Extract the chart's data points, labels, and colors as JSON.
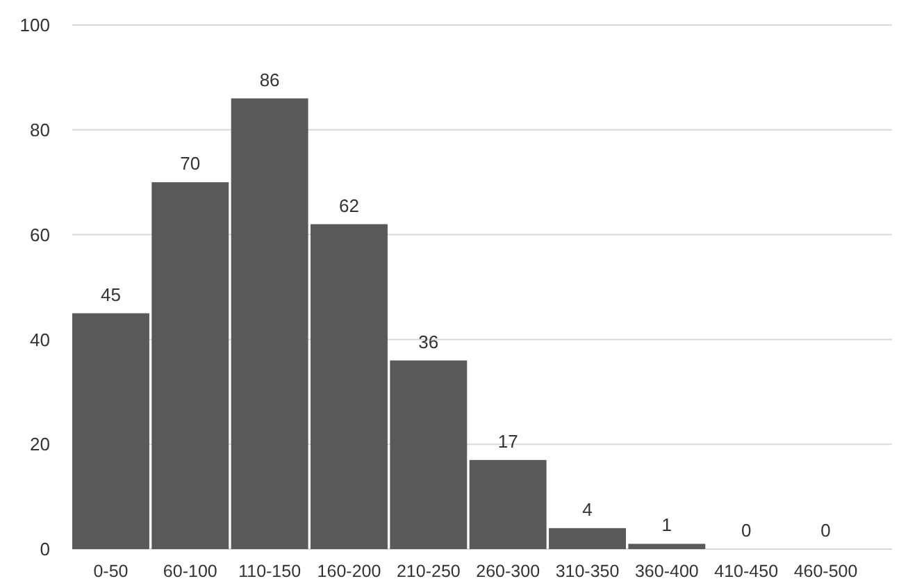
{
  "chart_data": {
    "type": "bar",
    "categories": [
      "0-50",
      "60-100",
      "110-150",
      "160-200",
      "210-250",
      "260-300",
      "310-350",
      "360-400",
      "410-450",
      "460-500"
    ],
    "values": [
      45,
      70,
      86,
      62,
      36,
      17,
      4,
      1,
      0,
      0
    ],
    "color": "#595959",
    "ylim": [
      0,
      100
    ],
    "yticks": [
      0,
      20,
      40,
      60,
      80,
      100
    ],
    "grid": "y",
    "data_labels": true
  }
}
